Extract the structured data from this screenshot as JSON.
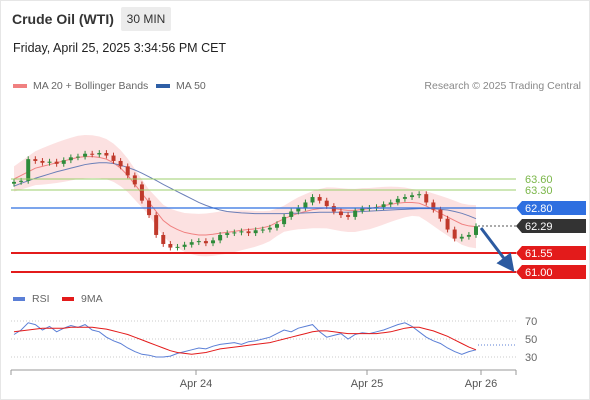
{
  "header": {
    "instrument": "Crude Oil (WTI)",
    "interval": "30 MIN",
    "timestamp": "Friday, April 25, 2025 3:34:56 PM CET"
  },
  "legend": {
    "items": [
      {
        "label": "MA 20 + Bollinger Bands",
        "color": "#f08080"
      },
      {
        "label": "MA 50",
        "color": "#2e5fa6"
      }
    ],
    "credit": "Research © 2025 Trading Central"
  },
  "price_levels": [
    {
      "value": "63.60",
      "kind": "resistance",
      "color": "#7ab648"
    },
    {
      "value": "63.30",
      "kind": "resistance",
      "color": "#7ab648"
    },
    {
      "value": "62.80",
      "kind": "pivot",
      "color": "#2e6fe0"
    },
    {
      "value": "62.29",
      "kind": "last",
      "color": "#333333"
    },
    {
      "value": "61.55",
      "kind": "support",
      "color": "#e31b1b"
    },
    {
      "value": "61.00",
      "kind": "support",
      "color": "#e31b1b"
    }
  ],
  "rsi": {
    "legend": [
      {
        "label": "RSI",
        "color": "#5b7fd6"
      },
      {
        "label": "9MA",
        "color": "#e31b1b"
      }
    ],
    "ticks": [
      "70",
      "50",
      "30"
    ]
  },
  "x_axis": {
    "ticks": [
      "Apr 24",
      "Apr 25",
      "Apr 26"
    ]
  },
  "chart_data": {
    "type": "candlestick",
    "price_scale": {
      "labels": [
        "63.60",
        "63.30",
        "62.80",
        "62.29",
        "61.55",
        "61.00"
      ]
    },
    "rsi_scale": {
      "min": 30,
      "max": 70
    },
    "x_ticks": [
      "Apr 24",
      "Apr 25",
      "Apr 26"
    ],
    "close": [
      63.52,
      63.55,
      64.15,
      64.1,
      64.05,
      64.08,
      64.02,
      64.12,
      64.2,
      64.22,
      64.3,
      64.28,
      64.32,
      64.25,
      64.1,
      63.95,
      63.7,
      63.45,
      63.0,
      62.6,
      62.05,
      61.8,
      61.7,
      61.72,
      61.78,
      61.85,
      61.88,
      61.82,
      61.9,
      62.05,
      62.1,
      62.12,
      62.15,
      62.1,
      62.18,
      62.2,
      62.25,
      62.35,
      62.55,
      62.7,
      62.8,
      62.95,
      63.1,
      63.0,
      62.85,
      62.7,
      62.6,
      62.55,
      62.72,
      62.78,
      62.8,
      62.82,
      62.9,
      62.95,
      63.05,
      63.1,
      63.15,
      63.18,
      62.95,
      62.75,
      62.5,
      62.2,
      61.95,
      62.0,
      62.05,
      62.29
    ],
    "ma20": [
      63.6,
      63.7,
      63.8,
      63.9,
      63.95,
      64.0,
      64.05,
      64.1,
      64.15,
      64.2,
      64.22,
      64.22,
      64.2,
      64.15,
      64.05,
      63.9,
      63.7,
      63.45,
      63.2,
      62.95,
      62.7,
      62.45,
      62.3,
      62.2,
      62.12,
      62.08,
      62.05,
      62.05,
      62.07,
      62.1,
      62.12,
      62.15,
      62.18,
      62.2,
      62.22,
      62.25,
      62.3,
      62.4,
      62.5,
      62.58,
      62.65,
      62.7,
      62.75,
      62.78,
      62.8,
      62.78,
      62.75,
      62.73,
      62.73,
      62.76,
      62.78,
      62.82,
      62.86,
      62.9,
      62.93,
      62.95,
      62.95,
      62.93,
      62.85,
      62.75,
      62.65,
      62.55,
      62.45,
      62.35,
      62.3,
      62.28
    ],
    "ma50": [
      63.4,
      63.48,
      63.55,
      63.62,
      63.68,
      63.74,
      63.8,
      63.85,
      63.9,
      63.95,
      64.0,
      64.03,
      64.05,
      64.05,
      64.03,
      63.98,
      63.92,
      63.85,
      63.76,
      63.66,
      63.56,
      63.45,
      63.35,
      63.25,
      63.15,
      63.05,
      62.95,
      62.87,
      62.8,
      62.74,
      62.7,
      62.68,
      62.66,
      62.65,
      62.64,
      62.64,
      62.64,
      62.64,
      62.64,
      62.65,
      62.65,
      62.66,
      62.67,
      62.68,
      62.68,
      62.68,
      62.68,
      62.68,
      62.69,
      62.7,
      62.71,
      62.72,
      62.73,
      62.74,
      62.75,
      62.76,
      62.77,
      62.78,
      62.78,
      62.78,
      62.76,
      62.74,
      62.7,
      62.65,
      62.58,
      62.5
    ],
    "rsi": [
      55,
      60,
      68,
      66,
      60,
      64,
      58,
      62,
      65,
      63,
      66,
      60,
      58,
      52,
      48,
      45,
      40,
      36,
      33,
      32,
      30,
      30,
      31,
      34,
      36,
      38,
      40,
      39,
      42,
      44,
      45,
      46,
      44,
      47,
      48,
      50,
      52,
      56,
      60,
      58,
      62,
      64,
      66,
      58,
      52,
      54,
      56,
      50,
      55,
      57,
      56,
      58,
      60,
      63,
      66,
      68,
      64,
      58,
      52,
      48,
      45,
      40,
      36,
      33,
      36,
      38
    ],
    "rsi_ma": [
      58,
      59,
      60,
      61,
      62,
      62,
      62,
      62,
      63,
      63,
      63,
      63,
      62,
      61,
      59,
      57,
      55,
      52,
      49,
      46,
      43,
      40,
      37,
      35,
      34,
      33,
      34,
      35,
      37,
      39,
      40,
      41,
      42,
      43,
      44,
      45,
      46,
      48,
      50,
      52,
      54,
      56,
      58,
      59,
      59,
      58,
      57,
      56,
      56,
      56,
      56,
      56,
      57,
      58,
      60,
      62,
      63,
      63,
      61,
      59,
      56,
      53,
      49,
      45,
      41,
      38
    ]
  }
}
